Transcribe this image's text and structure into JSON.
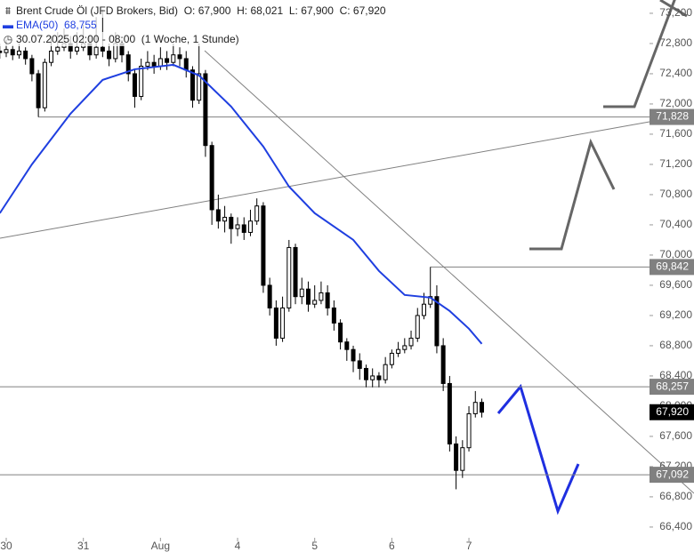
{
  "chart_data": {
    "type": "candlestick",
    "header_ohlc": [
      {
        "key": "O:",
        "value": "67,900"
      },
      {
        "key": "H:",
        "value": "68,021"
      },
      {
        "key": "L:",
        "value": "67,900"
      },
      {
        "key": "C:",
        "value": "67,920"
      }
    ],
    "timestamp_label": "30.07.2025 02:00 - 08:00",
    "interval_label": "(1 Woche, 1 Stunde)",
    "series": [
      {
        "name": "Brent Crude Öl (JFD Brokers, Bid)",
        "type": "candlestick",
        "color_up": "#ffffff",
        "color_down": "#000000",
        "x": [
          -2,
          0,
          2,
          4,
          6,
          8,
          10,
          12,
          14,
          16,
          18,
          20,
          22,
          24,
          26,
          28,
          30,
          32,
          34,
          36,
          38,
          40,
          42,
          44,
          46,
          48,
          50,
          52,
          54,
          56,
          58,
          60,
          62,
          64,
          66,
          68,
          70,
          72,
          74,
          76,
          78,
          80,
          82,
          84,
          86,
          88,
          90,
          92,
          94,
          96,
          98,
          100,
          102,
          104,
          106,
          108,
          110,
          112,
          114,
          116,
          118,
          120,
          122,
          124,
          126,
          128,
          130,
          132,
          134,
          136,
          138,
          140,
          142,
          144,
          146,
          148
        ],
        "open": [
          72700,
          72680,
          72720,
          72650,
          72700,
          72600,
          72400,
          71950,
          72550,
          72700,
          72750,
          72800,
          72700,
          72750,
          72800,
          72650,
          72750,
          72700,
          72600,
          72800,
          72650,
          72400,
          72100,
          72500,
          72550,
          72500,
          72600,
          72550,
          72650,
          72600,
          72450,
          72050,
          72400,
          71450,
          70600,
          70450,
          70500,
          70350,
          70400,
          70300,
          70450,
          70650,
          69600,
          69300,
          68900,
          69300,
          70100,
          69450,
          69550,
          69350,
          69400,
          69500,
          69300,
          69100,
          68850,
          68750,
          68600,
          68500,
          68350,
          68400,
          68350,
          68550,
          68700,
          68750,
          68800,
          68900,
          69200,
          69350,
          69450,
          68800,
          68300,
          67500,
          67150,
          67450,
          67900,
          68050
        ],
        "high": [
          72800,
          72850,
          72780,
          72800,
          72750,
          72650,
          72450,
          72600,
          72900,
          72950,
          73000,
          72900,
          72950,
          73050,
          72900,
          73150,
          73250,
          72800,
          72950,
          72850,
          72700,
          72450,
          72600,
          72700,
          72650,
          72750,
          72700,
          72800,
          72750,
          72700,
          72500,
          72800,
          72450,
          71500,
          70800,
          70650,
          70550,
          70500,
          70500,
          70600,
          70750,
          70700,
          69700,
          69400,
          69450,
          70200,
          70150,
          69700,
          69650,
          69600,
          69650,
          69600,
          69400,
          69150,
          68900,
          68800,
          68700,
          68550,
          68500,
          68450,
          68650,
          68750,
          68850,
          68900,
          69000,
          69300,
          69500,
          69842,
          69600,
          68900,
          68400,
          67600,
          67550,
          68000,
          68200,
          68100
        ],
        "low": [
          72600,
          72620,
          72580,
          72600,
          72520,
          72300,
          71828,
          71900,
          72500,
          72650,
          72700,
          72600,
          72650,
          72700,
          72580,
          72600,
          72620,
          72500,
          72550,
          72550,
          72300,
          71950,
          72050,
          72450,
          72400,
          72450,
          72450,
          72500,
          72500,
          72350,
          71950,
          72000,
          71300,
          70400,
          70350,
          70300,
          70150,
          70250,
          70200,
          70250,
          70400,
          69500,
          69200,
          68800,
          68850,
          69250,
          69350,
          69350,
          69250,
          69300,
          69350,
          69200,
          69000,
          68750,
          68600,
          68450,
          68350,
          68250,
          68250,
          68250,
          68300,
          68500,
          68650,
          68700,
          68750,
          68850,
          69150,
          69300,
          68700,
          68200,
          67400,
          66900,
          67050,
          67400,
          67850,
          67850
        ],
        "close": [
          72680,
          72720,
          72650,
          72700,
          72600,
          72400,
          71950,
          72550,
          72700,
          72750,
          72800,
          72700,
          72750,
          72800,
          72650,
          72750,
          72700,
          72600,
          72800,
          72650,
          72400,
          72100,
          72500,
          72550,
          72500,
          72600,
          72550,
          72650,
          72600,
          72450,
          72050,
          72400,
          71450,
          70600,
          70450,
          70500,
          70350,
          70400,
          70300,
          70450,
          70650,
          69600,
          69300,
          68900,
          69300,
          70100,
          69450,
          69550,
          69350,
          69400,
          69500,
          69300,
          69100,
          68850,
          68750,
          68600,
          68500,
          68350,
          68400,
          68350,
          68550,
          68700,
          68750,
          68800,
          68900,
          69200,
          69350,
          69450,
          68800,
          68300,
          67500,
          67150,
          67450,
          67900,
          68050,
          67920
        ]
      },
      {
        "name": "EMA(50)",
        "type": "line",
        "color": "#1f3fe0",
        "header_value": "68,755",
        "x": [
          -2,
          8,
          20,
          30,
          40,
          52,
          60,
          70,
          80,
          88,
          96,
          108,
          116,
          124,
          132,
          138,
          144,
          148
        ],
        "values": [
          70554,
          71201,
          71871,
          72318,
          72459,
          72518,
          72377,
          71965,
          71436,
          70907,
          70554,
          70201,
          69790,
          69472,
          69437,
          69260,
          69025,
          68825
        ]
      }
    ],
    "xlim": [
      -1.94,
      200.2
    ],
    "xticks": [
      {
        "value": 0,
        "label": "30"
      },
      {
        "value": 24,
        "label": "31"
      },
      {
        "value": 48,
        "label": "Aug"
      },
      {
        "value": 72,
        "label": "4"
      },
      {
        "value": 96,
        "label": "5"
      },
      {
        "value": 120,
        "label": "6"
      },
      {
        "value": 144,
        "label": "7"
      }
    ],
    "ylim": [
      66258,
      73376
    ],
    "yticks": [
      {
        "value": 66400,
        "label": "66,400"
      },
      {
        "value": 66800,
        "label": "66,800"
      },
      {
        "value": 67200,
        "label": "67,200"
      },
      {
        "value": 67600,
        "label": "67,600"
      },
      {
        "value": 68000,
        "label": "68,000"
      },
      {
        "value": 68400,
        "label": "68,400"
      },
      {
        "value": 68800,
        "label": "68,800"
      },
      {
        "value": 69200,
        "label": "69,200"
      },
      {
        "value": 69600,
        "label": "69,600"
      },
      {
        "value": 70000,
        "label": "70,000"
      },
      {
        "value": 70400,
        "label": "70,400"
      },
      {
        "value": 70800,
        "label": "70,800"
      },
      {
        "value": 71200,
        "label": "71,200"
      },
      {
        "value": 71600,
        "label": "71,600"
      },
      {
        "value": 72000,
        "label": "72,000"
      },
      {
        "value": 72400,
        "label": "72,400"
      },
      {
        "value": 72800,
        "label": "72,800"
      },
      {
        "value": 73200,
        "label": "73,200"
      }
    ],
    "price_lines": [
      {
        "value": 71828,
        "label": "71,828",
        "start": 10
      },
      {
        "value": 69842,
        "label": "69,842",
        "start": 132
      },
      {
        "value": 68257,
        "label": "68,257"
      },
      {
        "value": 67092,
        "label": "67,092"
      }
    ],
    "last_price": {
      "value": 67920,
      "label": "67,920",
      "color": "#000000"
    },
    "line_color": "#808080"
  }
}
